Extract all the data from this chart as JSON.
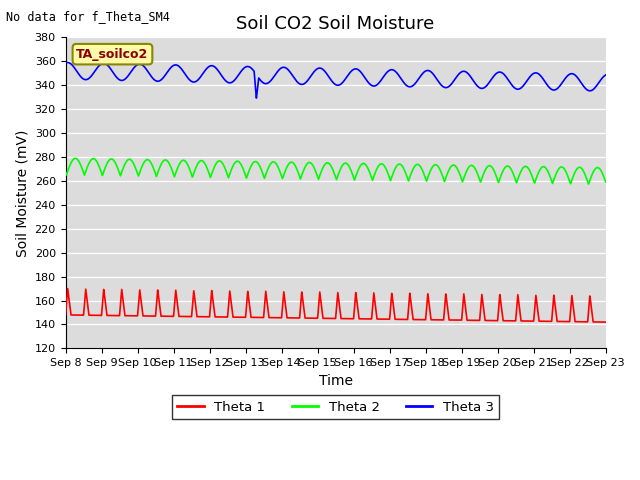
{
  "title": "Soil CO2 Soil Moisture",
  "ylabel": "Soil Moisture (mV)",
  "xlabel": "Time",
  "top_left_text": "No data for f_Theta_SM4",
  "annotation_box_text": "TA_soilco2",
  "ylim": [
    120,
    380
  ],
  "yticks": [
    120,
    140,
    160,
    180,
    200,
    220,
    240,
    260,
    280,
    300,
    320,
    340,
    360,
    380
  ],
  "xtick_labels": [
    "Sep 8",
    "Sep 9",
    "Sep 10",
    "Sep 11",
    "Sep 12",
    "Sep 13",
    "Sep 14",
    "Sep 15",
    "Sep 16",
    "Sep 17",
    "Sep 18",
    "Sep 19",
    "Sep 20",
    "Sep 21",
    "Sep 22",
    "Sep 23"
  ],
  "legend_labels": [
    "Theta 1",
    "Theta 2",
    "Theta 3"
  ],
  "legend_colors": [
    "red",
    "green",
    "blue"
  ],
  "background_color": "#dcdcdc",
  "title_fontsize": 13,
  "axis_label_fontsize": 10,
  "tick_fontsize": 8
}
